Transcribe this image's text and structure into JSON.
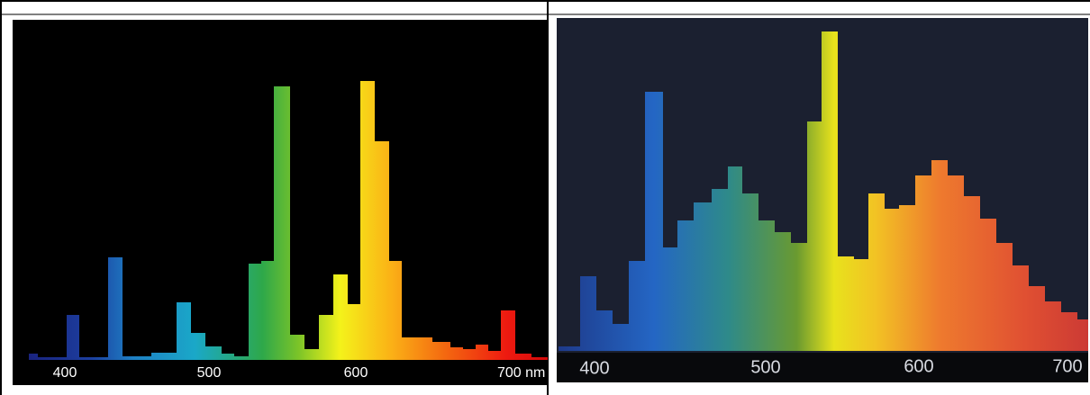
{
  "cells": [
    {
      "axis_labels": [
        "400",
        "500",
        "600",
        "700 nm"
      ]
    },
    {
      "axis_labels": [
        "400",
        "500",
        "600",
        "700"
      ]
    }
  ]
}
